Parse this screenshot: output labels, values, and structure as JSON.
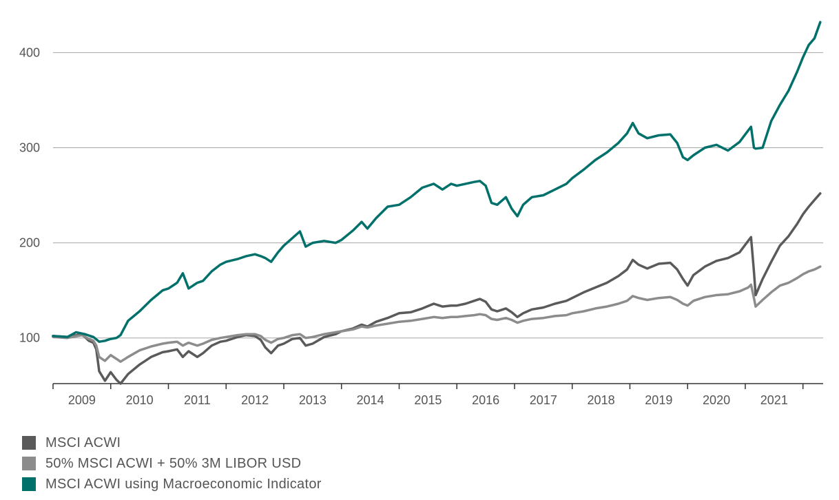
{
  "chart_data": {
    "type": "line",
    "title": "",
    "xlabel": "",
    "ylabel": "",
    "x_ticks": [
      "2009",
      "2010",
      "2011",
      "2012",
      "2013",
      "2014",
      "2015",
      "2016",
      "2017",
      "2018",
      "2019",
      "2020",
      "2021"
    ],
    "y_ticks": [
      100,
      200,
      300,
      400
    ],
    "xlim": [
      2008.0,
      2021.35
    ],
    "ylim": [
      52,
      435
    ],
    "grid": "horizontal",
    "legend_position": "bottom-left",
    "series": [
      {
        "name": "MSCI ACWI",
        "color": "#5a5a5a",
        "points": [
          [
            2008.0,
            102
          ],
          [
            2008.25,
            101
          ],
          [
            2008.5,
            104
          ],
          [
            2008.62,
            97
          ],
          [
            2008.7,
            95
          ],
          [
            2008.75,
            88
          ],
          [
            2008.8,
            65
          ],
          [
            2008.9,
            55
          ],
          [
            2009.0,
            64
          ],
          [
            2009.1,
            56
          ],
          [
            2009.17,
            52
          ],
          [
            2009.3,
            62
          ],
          [
            2009.5,
            72
          ],
          [
            2009.7,
            80
          ],
          [
            2009.9,
            85
          ],
          [
            2010.0,
            86
          ],
          [
            2010.15,
            88
          ],
          [
            2010.25,
            80
          ],
          [
            2010.35,
            86
          ],
          [
            2010.5,
            80
          ],
          [
            2010.6,
            84
          ],
          [
            2010.75,
            92
          ],
          [
            2010.9,
            96
          ],
          [
            2011.0,
            97
          ],
          [
            2011.2,
            101
          ],
          [
            2011.35,
            103
          ],
          [
            2011.5,
            102
          ],
          [
            2011.6,
            98
          ],
          [
            2011.68,
            90
          ],
          [
            2011.78,
            84
          ],
          [
            2011.9,
            92
          ],
          [
            2012.0,
            94
          ],
          [
            2012.15,
            99
          ],
          [
            2012.28,
            100
          ],
          [
            2012.38,
            92
          ],
          [
            2012.5,
            94
          ],
          [
            2012.7,
            101
          ],
          [
            2012.9,
            104
          ],
          [
            2013.0,
            107
          ],
          [
            2013.2,
            110
          ],
          [
            2013.35,
            114
          ],
          [
            2013.45,
            112
          ],
          [
            2013.6,
            117
          ],
          [
            2013.8,
            121
          ],
          [
            2014.0,
            126
          ],
          [
            2014.2,
            127
          ],
          [
            2014.4,
            131
          ],
          [
            2014.6,
            136
          ],
          [
            2014.75,
            133
          ],
          [
            2014.9,
            134
          ],
          [
            2015.0,
            134
          ],
          [
            2015.15,
            136
          ],
          [
            2015.3,
            139
          ],
          [
            2015.4,
            141
          ],
          [
            2015.5,
            138
          ],
          [
            2015.6,
            130
          ],
          [
            2015.7,
            128
          ],
          [
            2015.85,
            131
          ],
          [
            2015.95,
            127
          ],
          [
            2016.05,
            122
          ],
          [
            2016.15,
            126
          ],
          [
            2016.3,
            130
          ],
          [
            2016.5,
            132
          ],
          [
            2016.7,
            136
          ],
          [
            2016.9,
            139
          ],
          [
            2017.0,
            142
          ],
          [
            2017.2,
            148
          ],
          [
            2017.4,
            153
          ],
          [
            2017.6,
            158
          ],
          [
            2017.8,
            165
          ],
          [
            2017.95,
            172
          ],
          [
            2018.05,
            182
          ],
          [
            2018.15,
            177
          ],
          [
            2018.3,
            173
          ],
          [
            2018.5,
            178
          ],
          [
            2018.7,
            179
          ],
          [
            2018.82,
            172
          ],
          [
            2018.92,
            162
          ],
          [
            2019.0,
            155
          ],
          [
            2019.1,
            166
          ],
          [
            2019.3,
            175
          ],
          [
            2019.5,
            181
          ],
          [
            2019.7,
            184
          ],
          [
            2019.9,
            190
          ],
          [
            2020.05,
            202
          ],
          [
            2020.1,
            206
          ],
          [
            2020.15,
            170
          ],
          [
            2020.18,
            145
          ],
          [
            2020.3,
            162
          ],
          [
            2020.45,
            180
          ],
          [
            2020.6,
            197
          ],
          [
            2020.75,
            207
          ],
          [
            2020.9,
            220
          ],
          [
            2021.0,
            230
          ],
          [
            2021.1,
            238
          ],
          [
            2021.2,
            245
          ],
          [
            2021.3,
            252
          ]
        ]
      },
      {
        "name": "50% MSCI ACWI + 50% 3M LIBOR USD",
        "color": "#8c8c8c",
        "points": [
          [
            2008.0,
            101
          ],
          [
            2008.25,
            100
          ],
          [
            2008.5,
            103
          ],
          [
            2008.62,
            99
          ],
          [
            2008.7,
            97
          ],
          [
            2008.75,
            92
          ],
          [
            2008.8,
            80
          ],
          [
            2008.9,
            76
          ],
          [
            2009.0,
            82
          ],
          [
            2009.1,
            78
          ],
          [
            2009.17,
            75
          ],
          [
            2009.3,
            80
          ],
          [
            2009.5,
            87
          ],
          [
            2009.7,
            91
          ],
          [
            2009.9,
            94
          ],
          [
            2010.0,
            95
          ],
          [
            2010.15,
            96
          ],
          [
            2010.25,
            92
          ],
          [
            2010.35,
            95
          ],
          [
            2010.5,
            92
          ],
          [
            2010.6,
            94
          ],
          [
            2010.75,
            98
          ],
          [
            2010.9,
            100
          ],
          [
            2011.0,
            101
          ],
          [
            2011.2,
            103
          ],
          [
            2011.35,
            104
          ],
          [
            2011.5,
            104
          ],
          [
            2011.6,
            102
          ],
          [
            2011.68,
            98
          ],
          [
            2011.78,
            95
          ],
          [
            2011.9,
            99
          ],
          [
            2012.0,
            100
          ],
          [
            2012.15,
            103
          ],
          [
            2012.28,
            104
          ],
          [
            2012.38,
            100
          ],
          [
            2012.5,
            101
          ],
          [
            2012.7,
            104
          ],
          [
            2012.9,
            106
          ],
          [
            2013.0,
            107
          ],
          [
            2013.2,
            109
          ],
          [
            2013.35,
            112
          ],
          [
            2013.45,
            111
          ],
          [
            2013.6,
            113
          ],
          [
            2013.8,
            115
          ],
          [
            2014.0,
            117
          ],
          [
            2014.2,
            118
          ],
          [
            2014.4,
            120
          ],
          [
            2014.6,
            122
          ],
          [
            2014.75,
            121
          ],
          [
            2014.9,
            122
          ],
          [
            2015.0,
            122
          ],
          [
            2015.15,
            123
          ],
          [
            2015.3,
            124
          ],
          [
            2015.4,
            125
          ],
          [
            2015.5,
            124
          ],
          [
            2015.6,
            120
          ],
          [
            2015.7,
            119
          ],
          [
            2015.85,
            121
          ],
          [
            2015.95,
            119
          ],
          [
            2016.05,
            116
          ],
          [
            2016.15,
            118
          ],
          [
            2016.3,
            120
          ],
          [
            2016.5,
            121
          ],
          [
            2016.7,
            123
          ],
          [
            2016.9,
            124
          ],
          [
            2017.0,
            126
          ],
          [
            2017.2,
            128
          ],
          [
            2017.4,
            131
          ],
          [
            2017.6,
            133
          ],
          [
            2017.8,
            136
          ],
          [
            2017.95,
            139
          ],
          [
            2018.05,
            144
          ],
          [
            2018.15,
            142
          ],
          [
            2018.3,
            140
          ],
          [
            2018.5,
            142
          ],
          [
            2018.7,
            143
          ],
          [
            2018.82,
            140
          ],
          [
            2018.92,
            136
          ],
          [
            2019.0,
            134
          ],
          [
            2019.1,
            139
          ],
          [
            2019.3,
            143
          ],
          [
            2019.5,
            145
          ],
          [
            2019.7,
            146
          ],
          [
            2019.9,
            149
          ],
          [
            2020.05,
            153
          ],
          [
            2020.1,
            156
          ],
          [
            2020.15,
            142
          ],
          [
            2020.18,
            133
          ],
          [
            2020.3,
            140
          ],
          [
            2020.45,
            148
          ],
          [
            2020.6,
            155
          ],
          [
            2020.75,
            158
          ],
          [
            2020.9,
            163
          ],
          [
            2021.0,
            167
          ],
          [
            2021.1,
            170
          ],
          [
            2021.2,
            172
          ],
          [
            2021.3,
            175
          ]
        ]
      },
      {
        "name": "MSCI ACWI using Macroeconomic Indicator",
        "color": "#00706b",
        "points": [
          [
            2008.0,
            102
          ],
          [
            2008.25,
            101
          ],
          [
            2008.4,
            106
          ],
          [
            2008.55,
            104
          ],
          [
            2008.7,
            101
          ],
          [
            2008.8,
            96
          ],
          [
            2008.9,
            97
          ],
          [
            2009.0,
            99
          ],
          [
            2009.1,
            100
          ],
          [
            2009.17,
            103
          ],
          [
            2009.3,
            118
          ],
          [
            2009.5,
            128
          ],
          [
            2009.7,
            140
          ],
          [
            2009.9,
            150
          ],
          [
            2010.0,
            152
          ],
          [
            2010.15,
            158
          ],
          [
            2010.25,
            168
          ],
          [
            2010.35,
            152
          ],
          [
            2010.5,
            158
          ],
          [
            2010.6,
            160
          ],
          [
            2010.75,
            170
          ],
          [
            2010.9,
            177
          ],
          [
            2011.0,
            180
          ],
          [
            2011.2,
            183
          ],
          [
            2011.35,
            186
          ],
          [
            2011.5,
            188
          ],
          [
            2011.6,
            186
          ],
          [
            2011.68,
            184
          ],
          [
            2011.78,
            180
          ],
          [
            2011.9,
            190
          ],
          [
            2012.0,
            197
          ],
          [
            2012.15,
            205
          ],
          [
            2012.28,
            212
          ],
          [
            2012.38,
            196
          ],
          [
            2012.5,
            200
          ],
          [
            2012.7,
            202
          ],
          [
            2012.9,
            200
          ],
          [
            2013.0,
            203
          ],
          [
            2013.2,
            213
          ],
          [
            2013.35,
            222
          ],
          [
            2013.45,
            215
          ],
          [
            2013.6,
            226
          ],
          [
            2013.8,
            238
          ],
          [
            2014.0,
            240
          ],
          [
            2014.2,
            248
          ],
          [
            2014.4,
            258
          ],
          [
            2014.6,
            262
          ],
          [
            2014.75,
            256
          ],
          [
            2014.9,
            262
          ],
          [
            2015.0,
            260
          ],
          [
            2015.15,
            262
          ],
          [
            2015.3,
            264
          ],
          [
            2015.4,
            265
          ],
          [
            2015.5,
            260
          ],
          [
            2015.6,
            242
          ],
          [
            2015.7,
            240
          ],
          [
            2015.85,
            248
          ],
          [
            2015.95,
            236
          ],
          [
            2016.05,
            228
          ],
          [
            2016.15,
            240
          ],
          [
            2016.3,
            248
          ],
          [
            2016.5,
            250
          ],
          [
            2016.7,
            256
          ],
          [
            2016.9,
            262
          ],
          [
            2017.0,
            268
          ],
          [
            2017.2,
            277
          ],
          [
            2017.4,
            287
          ],
          [
            2017.6,
            295
          ],
          [
            2017.8,
            305
          ],
          [
            2017.95,
            315
          ],
          [
            2018.05,
            326
          ],
          [
            2018.15,
            315
          ],
          [
            2018.3,
            310
          ],
          [
            2018.5,
            313
          ],
          [
            2018.7,
            314
          ],
          [
            2018.82,
            305
          ],
          [
            2018.92,
            290
          ],
          [
            2019.0,
            287
          ],
          [
            2019.1,
            292
          ],
          [
            2019.3,
            300
          ],
          [
            2019.5,
            303
          ],
          [
            2019.7,
            297
          ],
          [
            2019.9,
            306
          ],
          [
            2020.05,
            318
          ],
          [
            2020.1,
            322
          ],
          [
            2020.15,
            300
          ],
          [
            2020.18,
            299
          ],
          [
            2020.3,
            300
          ],
          [
            2020.45,
            328
          ],
          [
            2020.6,
            345
          ],
          [
            2020.75,
            360
          ],
          [
            2020.9,
            380
          ],
          [
            2021.0,
            395
          ],
          [
            2021.1,
            408
          ],
          [
            2021.2,
            415
          ],
          [
            2021.3,
            432
          ]
        ]
      }
    ]
  }
}
